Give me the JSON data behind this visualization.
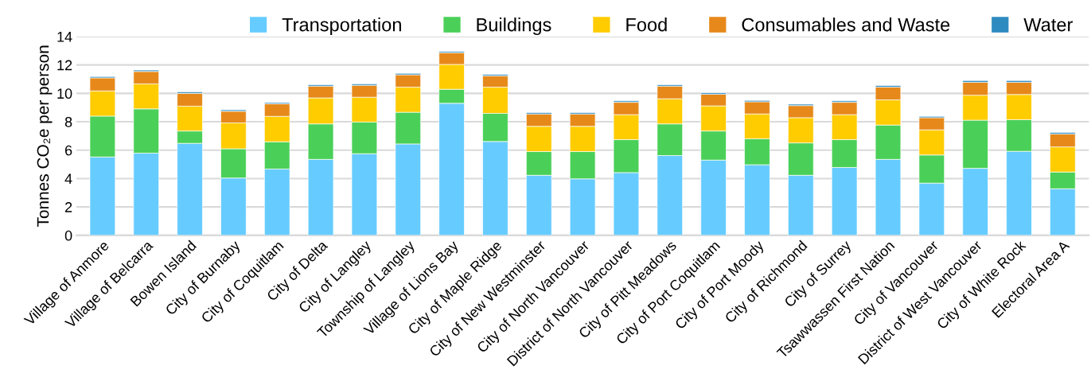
{
  "chart_data": {
    "type": "bar",
    "stacked": true,
    "ylabel": "Tonnes CO₂e per person",
    "categories": [
      "Village of Anmore",
      "Village of Belcarra",
      "Bowen Island",
      "City of Burnaby",
      "City of Coquitlam",
      "City of Delta",
      "City of Langley",
      "Township of Langley",
      "Village of Lions Bay",
      "City of Maple Ridge",
      "City of New Westminster",
      "City of North Vancouver",
      "District of North Vancouver",
      "City of Pitt Meadows",
      "City of Port Coquitlam",
      "City of Port Moody",
      "City of Richmond",
      "City of Surrey",
      "Tsawwassen First Nation",
      "City of Vancouver",
      "District of West Vancouver",
      "City of White Rock",
      "Electoral Area A"
    ],
    "series": [
      {
        "name": "Transportation",
        "color": "#66ccff",
        "values": [
          5.52,
          5.79,
          6.48,
          4.04,
          4.67,
          5.35,
          5.75,
          6.44,
          9.3,
          6.61,
          4.23,
          3.98,
          4.42,
          5.62,
          5.3,
          4.97,
          4.23,
          4.78,
          5.35,
          3.68,
          4.72,
          5.92,
          3.28
        ]
      },
      {
        "name": "Buildings",
        "color": "#4ad058",
        "values": [
          2.88,
          3.12,
          0.87,
          2.06,
          1.92,
          2.5,
          2.23,
          2.23,
          0.99,
          1.98,
          1.67,
          1.92,
          2.32,
          2.23,
          2.05,
          1.83,
          2.28,
          1.96,
          2.42,
          1.98,
          3.39,
          2.23,
          1.18
        ]
      },
      {
        "name": "Food",
        "color": "#ffcc00",
        "values": [
          1.77,
          1.76,
          1.75,
          1.82,
          1.79,
          1.83,
          1.75,
          1.77,
          1.75,
          1.85,
          1.78,
          1.78,
          1.76,
          1.77,
          1.77,
          1.75,
          1.78,
          1.76,
          1.77,
          1.77,
          1.76,
          1.77,
          1.77
        ]
      },
      {
        "name": "Consumables and Waste",
        "color": "#e6891a",
        "values": [
          0.92,
          0.87,
          0.9,
          0.82,
          0.88,
          0.83,
          0.84,
          0.87,
          0.82,
          0.8,
          0.87,
          0.87,
          0.87,
          0.89,
          0.82,
          0.86,
          0.85,
          0.87,
          0.9,
          0.86,
          0.91,
          0.86,
          0.91
        ]
      },
      {
        "name": "Water",
        "color": "#2e8bc0",
        "values": [
          0.09,
          0.1,
          0.1,
          0.1,
          0.09,
          0.1,
          0.1,
          0.1,
          0.09,
          0.09,
          0.1,
          0.1,
          0.1,
          0.1,
          0.1,
          0.09,
          0.1,
          0.1,
          0.11,
          0.09,
          0.12,
          0.12,
          0.1
        ]
      }
    ],
    "ylim": [
      0,
      14
    ],
    "yticks": [
      0,
      2,
      4,
      6,
      8,
      10,
      12,
      14
    ],
    "grid": "y",
    "legend": "top right"
  }
}
